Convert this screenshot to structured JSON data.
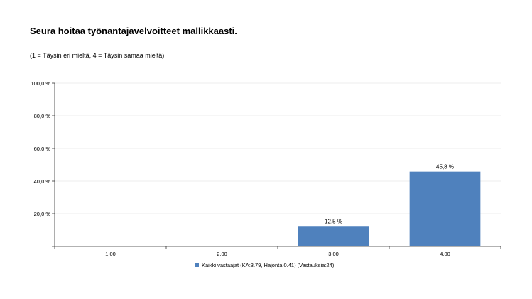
{
  "title": "Seura hoitaa työnantajavelvoitteet mallikkaasti.",
  "subtitle": "(1 = Täysin eri mieltä, 4 = Täysin samaa mieltä)",
  "chart_data": {
    "type": "bar",
    "categories": [
      "1.00",
      "2.00",
      "3.00",
      "4.00"
    ],
    "series": [
      {
        "name": "Kaikki vastaajat (KA:3.79, Hajonta:0.41) (Vastauksia:24)",
        "values": [
          0,
          0,
          12.5,
          45.8
        ],
        "value_labels": [
          "",
          "",
          "12,5 %",
          "45,8 %"
        ],
        "color": "#4f81bd"
      }
    ],
    "ylim": [
      0,
      100
    ],
    "yticks": [
      {
        "value": 20,
        "label": "20,0 %"
      },
      {
        "value": 40,
        "label": "40,0 %"
      },
      {
        "value": 60,
        "label": "60,0 %"
      },
      {
        "value": 80,
        "label": "80,0 %"
      },
      {
        "value": 100,
        "label": "100,0 %"
      }
    ],
    "grid": true,
    "legend_position": "bottom"
  }
}
